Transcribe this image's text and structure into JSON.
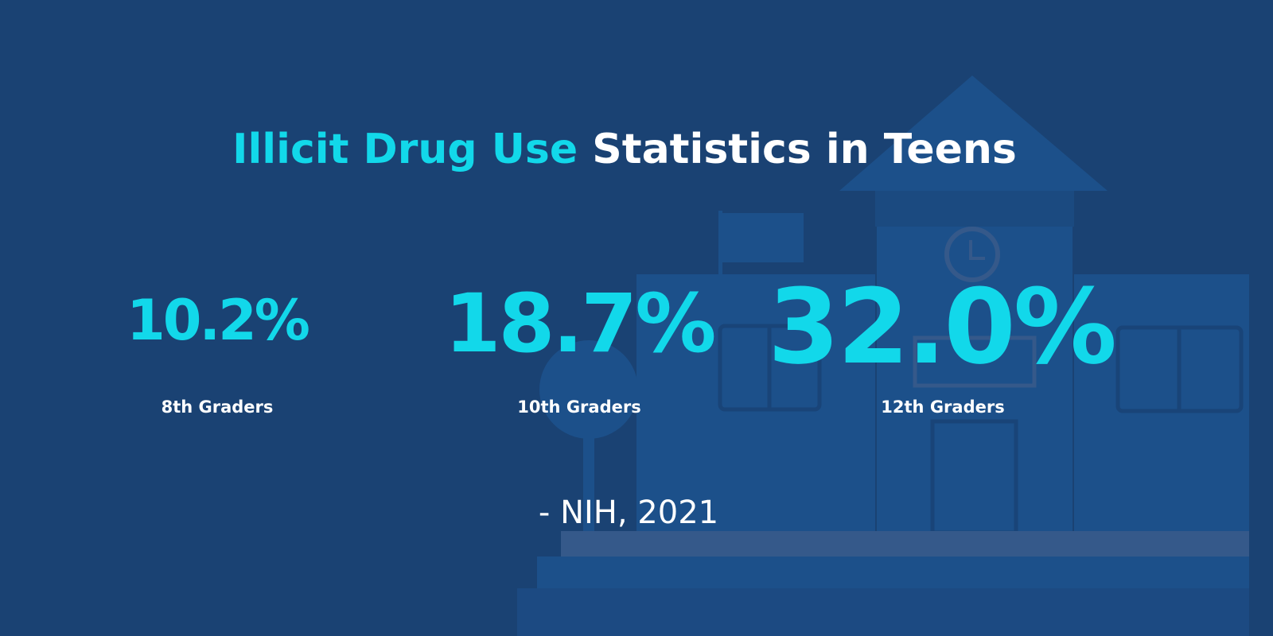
{
  "title": {
    "highlight": "Illicit Drug Use",
    "rest": "Statistics in Teens"
  },
  "stats": [
    {
      "value": "10.2%",
      "label": "8th Graders"
    },
    {
      "value": "18.7%",
      "label": "10th Graders"
    },
    {
      "value": "32.0%",
      "label": "12th Graders"
    }
  ],
  "source": "- NIH, 2021",
  "colors": {
    "background": "#1a4273",
    "accent": "#12d8ea",
    "illustration": "#1c508a",
    "text": "#ffffff"
  },
  "illustration": "school-building"
}
